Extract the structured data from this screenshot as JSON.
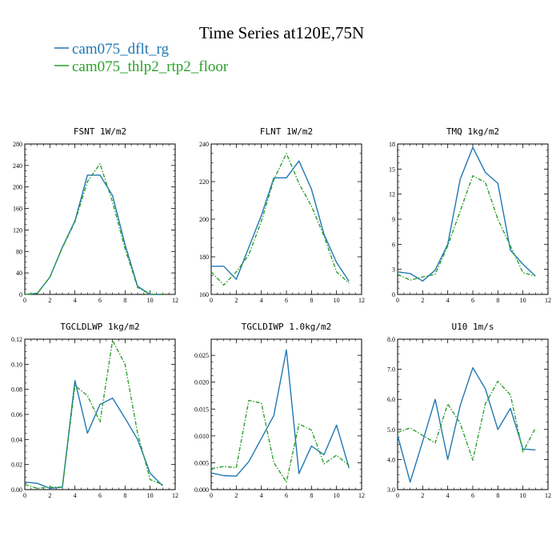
{
  "figure": {
    "title": "Time Series at120E,75N",
    "colors": {
      "blue": "#1f77b4",
      "green": "#2ca02c"
    },
    "legend": [
      {
        "name": "cam075_dflt_rg",
        "color": "#1f77b4",
        "dashed": false
      },
      {
        "name": "cam075_thlp2_rtp2_floor",
        "color": "#2ca02c",
        "dashed": true
      }
    ]
  },
  "chart_data": [
    {
      "type": "line",
      "title": "FSNT  1W/m2",
      "xlim": [
        0,
        12
      ],
      "ylim": [
        0,
        280
      ],
      "xticks": [
        0,
        2,
        4,
        6,
        8,
        10,
        12
      ],
      "yticks": [
        0,
        40,
        80,
        120,
        160,
        200,
        240,
        280
      ],
      "ytick_labels": [
        "0",
        "40",
        "80",
        "120",
        "160",
        "200",
        "240",
        "280"
      ],
      "x": [
        0,
        1,
        2,
        3,
        4,
        5,
        6,
        7,
        8,
        9,
        10,
        11
      ],
      "series": [
        {
          "name": "cam075_dflt_rg",
          "values": [
            0,
            2,
            32,
            88,
            137,
            222,
            222,
            184,
            93,
            15,
            0,
            0
          ]
        },
        {
          "name": "cam075_thlp2_rtp2_floor",
          "values": [
            0,
            2,
            32,
            87,
            135,
            210,
            243,
            172,
            85,
            13,
            0,
            0
          ]
        }
      ]
    },
    {
      "type": "line",
      "title": "FLNT  1W/m2",
      "xlim": [
        0,
        12
      ],
      "ylim": [
        160,
        240
      ],
      "xticks": [
        0,
        2,
        4,
        6,
        8,
        10,
        12
      ],
      "yticks": [
        160,
        180,
        200,
        220,
        240
      ],
      "ytick_labels": [
        "160",
        "180",
        "200",
        "220",
        "240"
      ],
      "x": [
        0,
        1,
        2,
        3,
        4,
        5,
        6,
        7,
        8,
        9,
        10,
        11
      ],
      "series": [
        {
          "name": "cam075_dflt_rg",
          "values": [
            175,
            175,
            168,
            185,
            202,
            222,
            222,
            231,
            216,
            192,
            177,
            167
          ]
        },
        {
          "name": "cam075_thlp2_rtp2_floor",
          "values": [
            172,
            165,
            172,
            181,
            199,
            221,
            235,
            219,
            207,
            191,
            172,
            166
          ]
        }
      ]
    },
    {
      "type": "line",
      "title": "TMQ  1kg/m2",
      "xlim": [
        0,
        12
      ],
      "ylim": [
        0,
        18
      ],
      "xticks": [
        0,
        2,
        4,
        6,
        8,
        10,
        12
      ],
      "yticks": [
        0,
        3,
        6,
        9,
        12,
        15,
        18
      ],
      "ytick_labels": [
        "0",
        "3",
        "6",
        "9",
        "12",
        "15",
        "18"
      ],
      "x": [
        0,
        1,
        2,
        3,
        4,
        5,
        6,
        7,
        8,
        9,
        10,
        11
      ],
      "series": [
        {
          "name": "cam075_dflt_rg",
          "values": [
            2.7,
            2.5,
            1.6,
            2.9,
            6.0,
            13.8,
            17.6,
            14.6,
            13.3,
            5.3,
            3.6,
            2.2
          ]
        },
        {
          "name": "cam075_thlp2_rtp2_floor",
          "values": [
            2.4,
            1.7,
            2.1,
            2.4,
            5.8,
            10.0,
            14.2,
            13.4,
            9.0,
            5.8,
            2.6,
            2.2
          ]
        }
      ]
    },
    {
      "type": "line",
      "title": "TGCLDLWP  1kg/m2",
      "xlim": [
        0,
        12
      ],
      "ylim": [
        0,
        0.12
      ],
      "xticks": [
        0,
        2,
        4,
        6,
        8,
        10,
        12
      ],
      "yticks": [
        0,
        0.02,
        0.04,
        0.06,
        0.08,
        0.1,
        0.12
      ],
      "ytick_labels": [
        "0.00",
        "0.02",
        "0.04",
        "0.06",
        "0.08",
        "0.10",
        "0.12"
      ],
      "x": [
        0,
        1,
        2,
        3,
        4,
        5,
        6,
        7,
        8,
        9,
        10,
        11
      ],
      "series": [
        {
          "name": "cam075_dflt_rg",
          "values": [
            0.006,
            0.005,
            0.001,
            0.002,
            0.087,
            0.045,
            0.068,
            0.073,
            0.057,
            0.04,
            0.013,
            0.003
          ]
        },
        {
          "name": "cam075_thlp2_rtp2_floor",
          "values": [
            0.004,
            0.001,
            0.002,
            0.002,
            0.083,
            0.075,
            0.054,
            0.119,
            0.1,
            0.045,
            0.008,
            0.004
          ]
        }
      ]
    },
    {
      "type": "line",
      "title": "TGCLDIWP  1.0kg/m2",
      "xlim": [
        0,
        12
      ],
      "ylim": [
        0,
        0.028
      ],
      "xticks": [
        0,
        2,
        4,
        6,
        8,
        10,
        12
      ],
      "yticks": [
        0,
        0.005,
        0.01,
        0.015,
        0.02,
        0.025
      ],
      "ytick_labels": [
        "0.000",
        "0.005",
        "0.010",
        "0.015",
        "0.020",
        "0.025"
      ],
      "x": [
        0,
        1,
        2,
        3,
        4,
        5,
        6,
        7,
        8,
        9,
        10,
        11
      ],
      "series": [
        {
          "name": "cam075_dflt_rg",
          "values": [
            0.0031,
            0.0026,
            0.0025,
            0.0052,
            0.0095,
            0.0138,
            0.026,
            0.003,
            0.0081,
            0.0065,
            0.012,
            0.004
          ]
        },
        {
          "name": "cam075_thlp2_rtp2_floor",
          "values": [
            0.0039,
            0.0043,
            0.0041,
            0.0166,
            0.0161,
            0.005,
            0.0014,
            0.0122,
            0.0111,
            0.0048,
            0.0064,
            0.0045
          ]
        }
      ]
    },
    {
      "type": "line",
      "title": "U10  1m/s",
      "xlim": [
        0,
        12
      ],
      "ylim": [
        3.0,
        8.0
      ],
      "xticks": [
        0,
        2,
        4,
        6,
        8,
        10,
        12
      ],
      "yticks": [
        3,
        4,
        5,
        6,
        7,
        8
      ],
      "ytick_labels": [
        "3.0",
        "4.0",
        "5.0",
        "6.0",
        "7.0",
        "8.0"
      ],
      "x": [
        0,
        1,
        2,
        3,
        4,
        5,
        6,
        7,
        8,
        9,
        10,
        11
      ],
      "series": [
        {
          "name": "cam075_dflt_rg",
          "values": [
            4.8,
            3.25,
            4.6,
            6.0,
            4.0,
            5.8,
            7.05,
            6.35,
            5.0,
            5.7,
            4.35,
            4.32
          ]
        },
        {
          "name": "cam075_thlp2_rtp2_floor",
          "values": [
            4.9,
            5.05,
            4.8,
            4.55,
            5.85,
            5.2,
            3.98,
            5.85,
            6.6,
            6.15,
            4.25,
            5.05
          ]
        }
      ]
    }
  ]
}
